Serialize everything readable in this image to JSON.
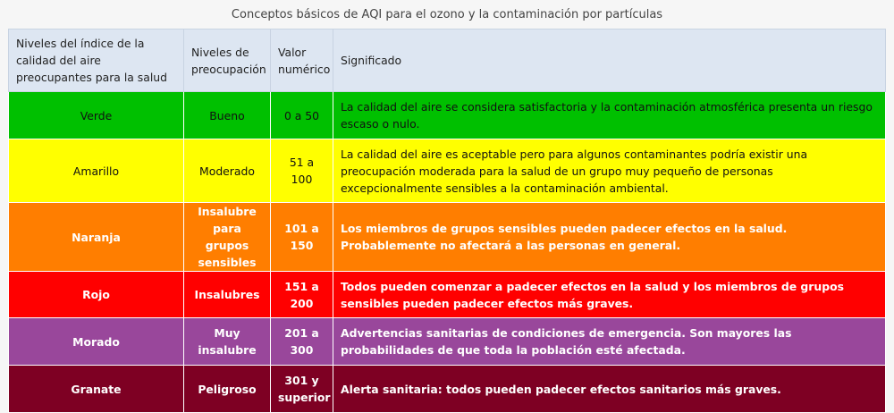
{
  "caption": "Conceptos básicos de AQI para el ozono y la contaminación por partículas",
  "headers": {
    "level_name": "Niveles del índice de la calidad del aire preocupantes para la salud",
    "concern": "Niveles de preocupación",
    "value": "Valor numérico",
    "meaning": "Significado"
  },
  "colors": {
    "header": "#dde6f2",
    "green": "#00c000",
    "yellow": "#ffff00",
    "orange": "#ff7e00",
    "red": "#ff0000",
    "purple": "#99479b",
    "maroon": "#7e0023"
  },
  "rows": [
    {
      "color_name": "Verde",
      "concern": "Bueno",
      "value": "0 a 50",
      "meaning": "La calidad del aire se considera satisfactoria y la contaminación atmosférica presenta un riesgo escaso o nulo."
    },
    {
      "color_name": "Amarillo",
      "concern": "Moderado",
      "value": "51 a 100",
      "meaning": "La calidad del aire es aceptable pero para algunos contaminantes podría existir una preocupación moderada para la salud de un grupo muy pequeño de personas excepcionalmente sensibles a la contaminación ambiental."
    },
    {
      "color_name": "Naranja",
      "concern": "Insalubre para grupos sensibles",
      "value": "101 a 150",
      "meaning": "Los miembros de grupos sensibles pueden padecer efectos en la salud. Probablemente no afectará a las personas en general."
    },
    {
      "color_name": "Rojo",
      "concern": "Insalubres",
      "value": "151 a 200",
      "meaning": "Todos pueden comenzar a padecer efectos en la salud y los miembros de grupos sensibles pueden padecer efectos más graves."
    },
    {
      "color_name": "Morado",
      "concern": "Muy insalubre",
      "value": "201 a 300",
      "meaning": "Advertencias sanitarias de condiciones de emergencia. Son mayores las probabilidades de que toda la población esté afectada."
    },
    {
      "color_name": "Granate",
      "concern": "Peligroso",
      "value": "301 y superior",
      "meaning": "Alerta sanitaria: todos pueden padecer efectos sanitarios más graves."
    }
  ]
}
